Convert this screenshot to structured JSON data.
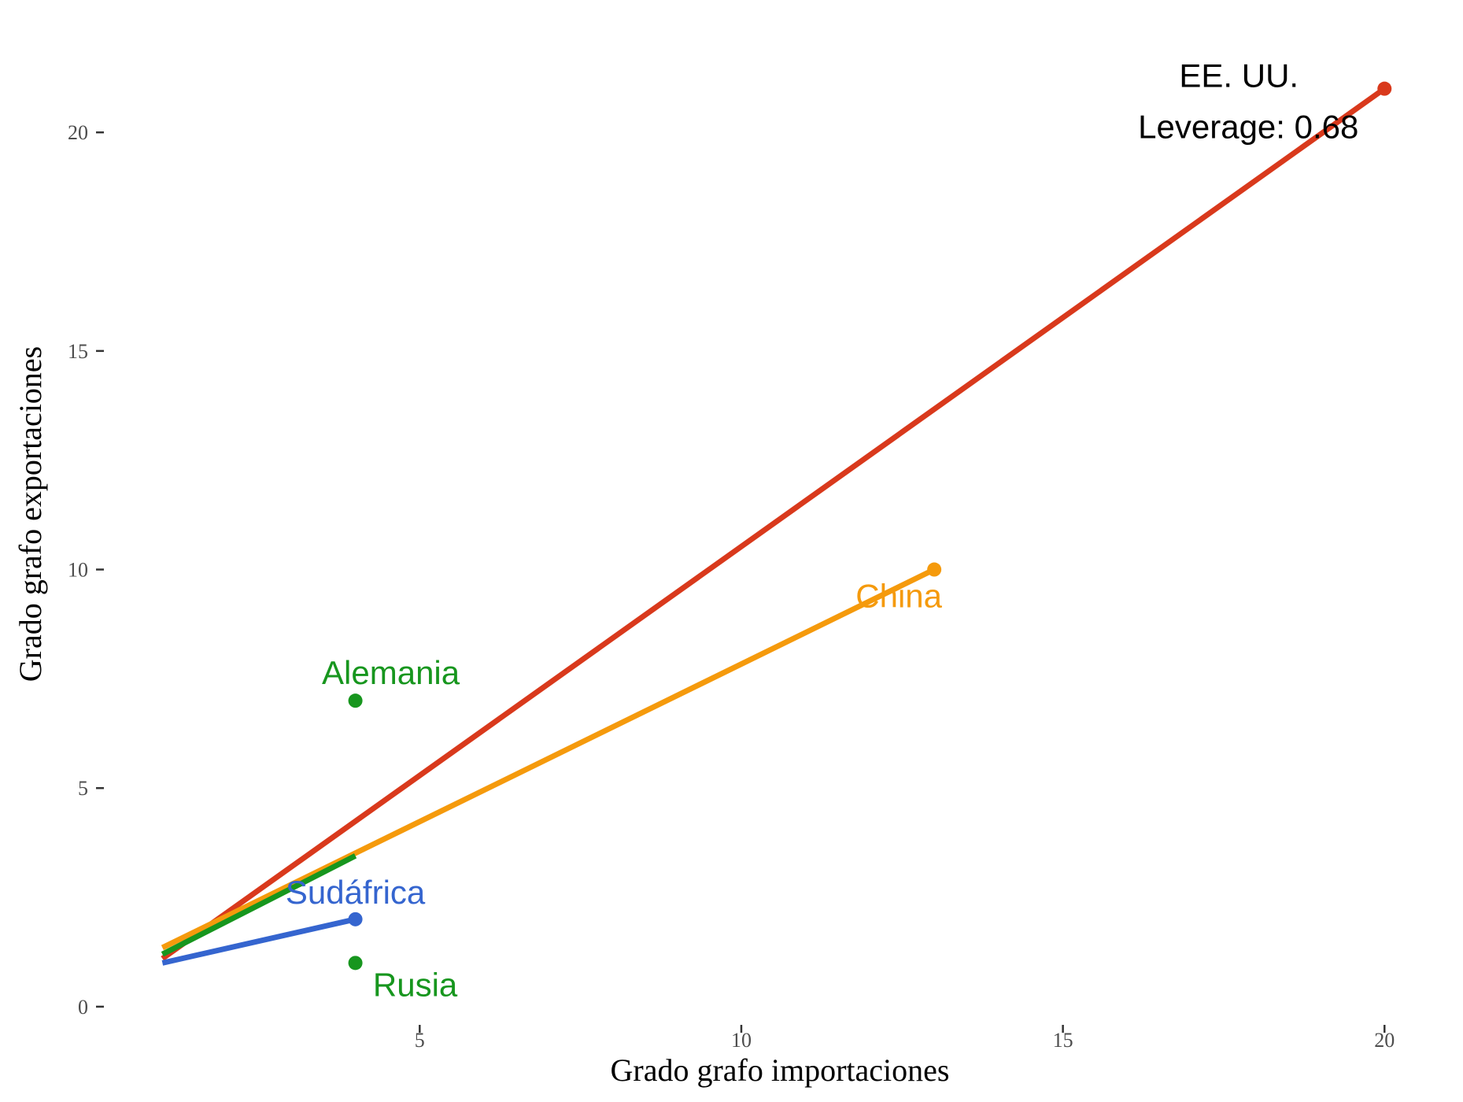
{
  "chart_data": {
    "type": "scatter",
    "xlabel": "Grado grafo importaciones",
    "ylabel": "Grado grafo exportaciones",
    "x_ticks": [
      5,
      10,
      15,
      20
    ],
    "y_ticks": [
      0,
      5,
      10,
      15,
      20
    ],
    "xlim": [
      0.2,
      21.0
    ],
    "ylim": [
      -0.2,
      22.2
    ],
    "grid": false,
    "legend": "none",
    "points": [
      {
        "id": "us",
        "x": 20,
        "y": 21,
        "color": "#d9391c",
        "label_lines": [
          "EE. UU.",
          "Leverage: 0.68"
        ],
        "label_color": "#000000"
      },
      {
        "id": "china",
        "x": 13,
        "y": 10,
        "color": "#f59a0c",
        "label_lines": [
          "China"
        ],
        "label_color": "#f59a0c"
      },
      {
        "id": "alemania",
        "x": 4,
        "y": 7,
        "color": "#17961e",
        "label_lines": [
          "Alemania"
        ],
        "label_color": "#17961e"
      },
      {
        "id": "sudafrica",
        "x": 4,
        "y": 2,
        "color": "#3565cf",
        "label_lines": [
          "Sudáfrica"
        ],
        "label_color": "#3565cf"
      },
      {
        "id": "rusia",
        "x": 4,
        "y": 1,
        "color": "#17961e",
        "label_lines": [
          "Rusia"
        ],
        "label_color": "#17961e"
      }
    ],
    "fit_lines": [
      {
        "id": "us",
        "color": "#d9391c",
        "x": [
          1,
          20
        ],
        "y": [
          1.1,
          21
        ]
      },
      {
        "id": "china",
        "color": "#f59a0c",
        "x": [
          1,
          13
        ],
        "y": [
          1.35,
          10
        ]
      },
      {
        "id": "alemania-rusia",
        "color": "#17961e",
        "x": [
          1,
          4
        ],
        "y": [
          1.2,
          3.45
        ]
      },
      {
        "id": "sudafrica",
        "color": "#3565cf",
        "x": [
          1,
          4
        ],
        "y": [
          1.0,
          2.0
        ]
      }
    ]
  }
}
